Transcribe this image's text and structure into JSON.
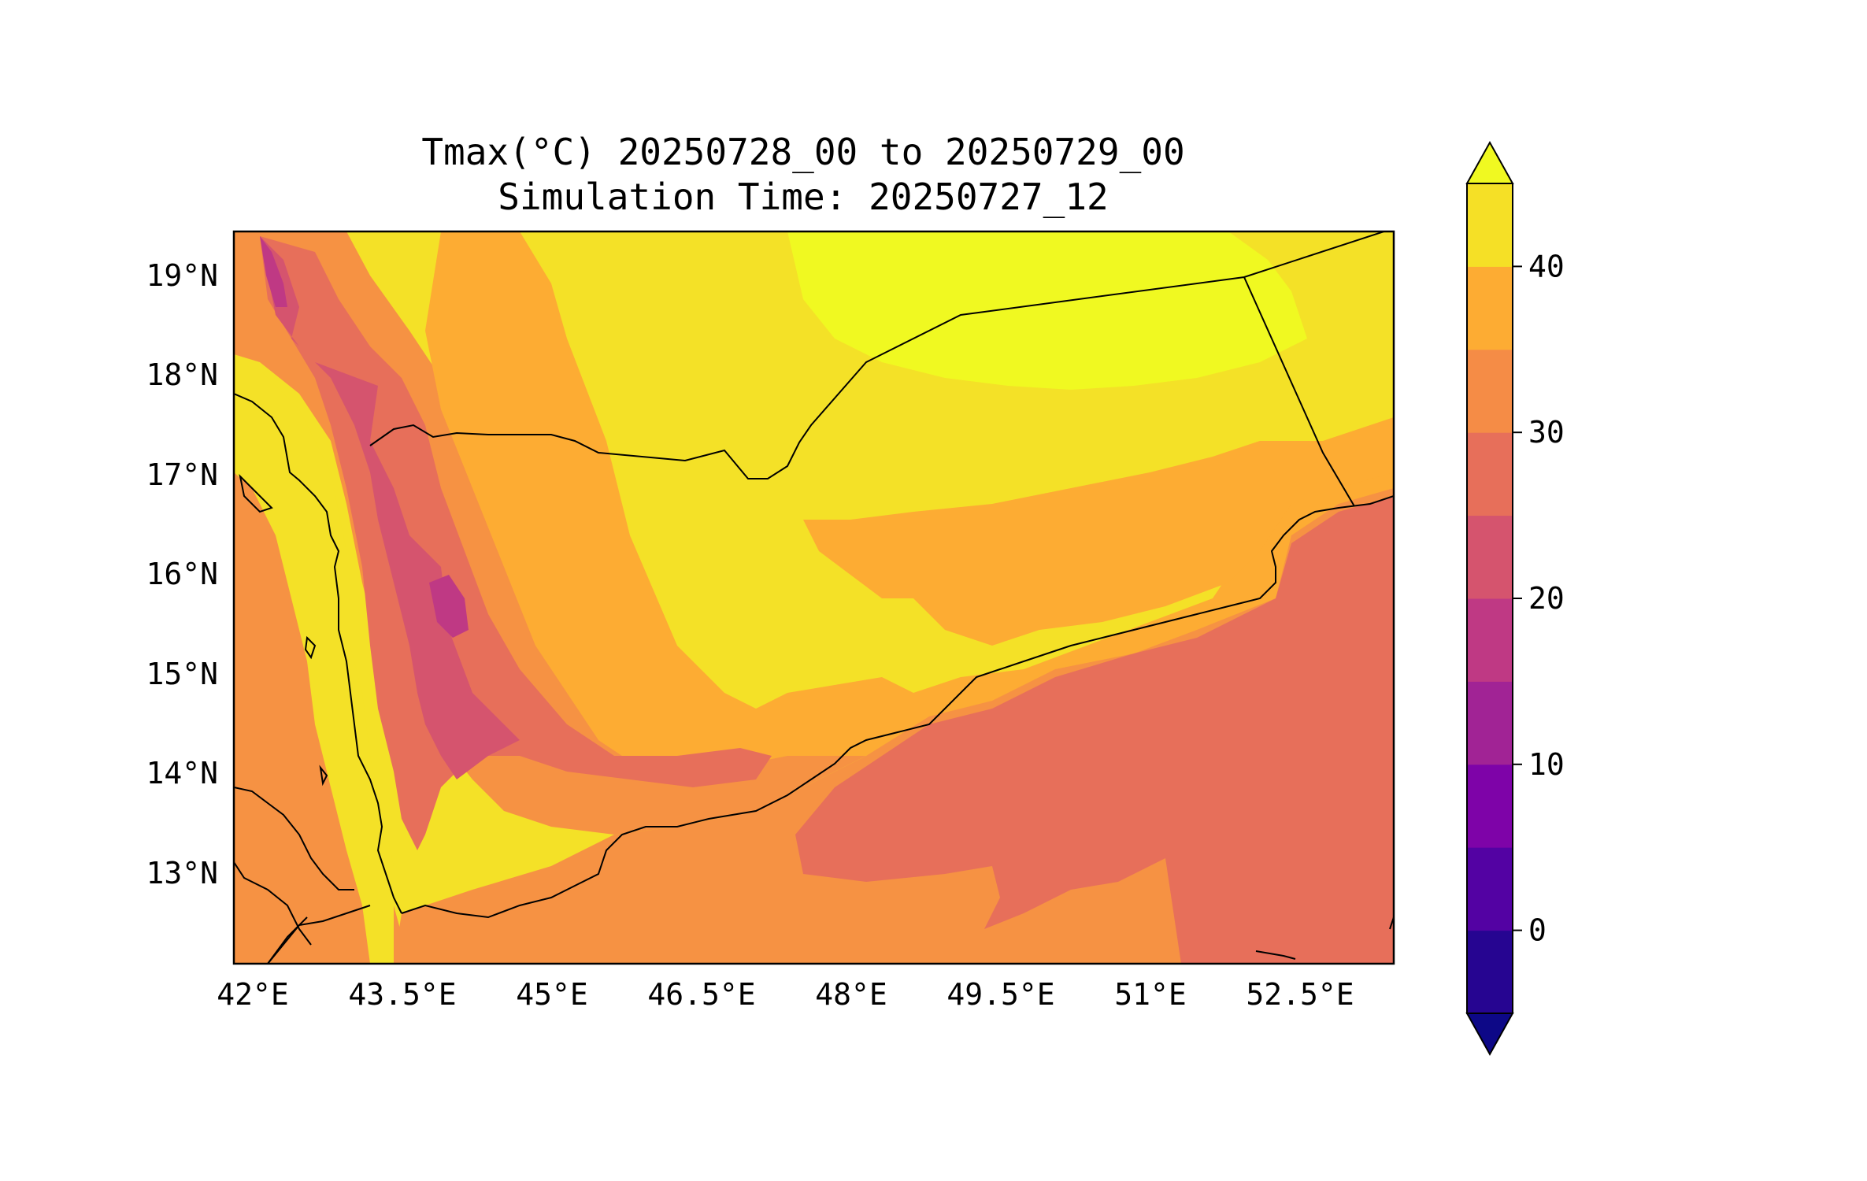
{
  "title": {
    "line1": "Tmax(°C) 20250728_00 to 20250729_00",
    "line2": "Simulation Time: 20250727_12"
  },
  "map": {
    "type": "filled-contour",
    "variable": "Tmax",
    "units": "°C",
    "extent": {
      "lon": [
        41.8,
        53.4
      ],
      "lat": [
        12.1,
        19.45
      ]
    },
    "x_ticks": [
      "42°E",
      "43.5°E",
      "45°E",
      "46.5°E",
      "48°E",
      "49.5°E",
      "51°E",
      "52.5°E"
    ],
    "y_ticks": [
      "19°N",
      "18°N",
      "17°N",
      "16°N",
      "15°N",
      "14°N",
      "13°N"
    ],
    "features": [
      "coastlines",
      "country-borders"
    ]
  },
  "colorbar": {
    "ticks": [
      "0",
      "10",
      "20",
      "30",
      "40"
    ],
    "levels": [
      -5,
      0,
      5,
      10,
      15,
      20,
      25,
      30,
      35,
      40,
      45
    ],
    "colors": [
      "#260591",
      "#5302a3",
      "#7e03a8",
      "#a12395",
      "#bf3984",
      "#d5546e",
      "#e76f5a",
      "#f58c46",
      "#fdac33",
      "#f5e026"
    ],
    "under_color": "#0d0887",
    "over_color": "#f0f921",
    "extend": "both"
  }
}
